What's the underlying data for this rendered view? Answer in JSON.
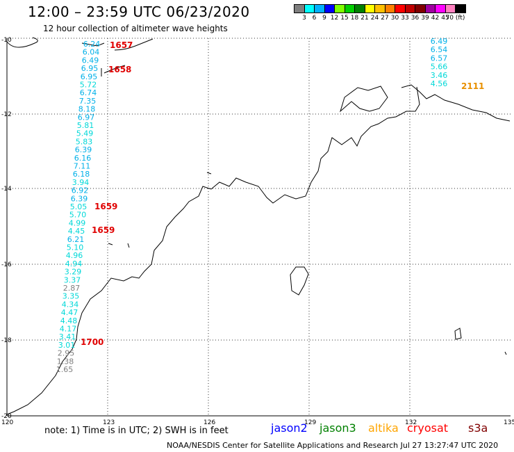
{
  "header": {
    "title": "12:00 – 23:59 UTC 06/23/2020",
    "subtitle": "12 hour collection of altimeter wave heights"
  },
  "scale": {
    "labels": [
      "3",
      "6",
      "9",
      "12",
      "15",
      "18",
      "21",
      "24",
      "27",
      "30",
      "33",
      "36",
      "39",
      "42",
      "45",
      "70 (ft)"
    ],
    "colors": [
      "#7f7f7f",
      "#00ffff",
      "#00b0ff",
      "#0000ff",
      "#7fff00",
      "#00d000",
      "#008000",
      "#ffff00",
      "#ffc000",
      "#ff8000",
      "#ff0000",
      "#c00000",
      "#800000",
      "#a000a0",
      "#ff00ff",
      "#ff80c0",
      "#000000"
    ]
  },
  "axes": {
    "x_ticks": [
      "120",
      "123",
      "126",
      "129",
      "132",
      "135"
    ],
    "y_ticks": [
      "-10",
      "-12",
      "-14",
      "-16",
      "-18",
      "-20"
    ]
  },
  "track_west": {
    "heights": [
      "6.24",
      "6.04",
      "6.49",
      "6.95",
      "6.95",
      "5.72",
      "6.74",
      "7.35",
      "8.18",
      "6.97",
      "5.81",
      "5.49",
      "5.83",
      "6.39",
      "6.16",
      "7.11",
      "6.18",
      "3.94",
      "6.92",
      "6.39",
      "5.05",
      "5.70",
      "4.99",
      "4.45",
      "6.21",
      "5.10",
      "4.96",
      "4.94",
      "3.29",
      "3.37",
      "2.87",
      "3.35",
      "4.34",
      "4.47",
      "4.48",
      "4.17",
      "3.41",
      "3.01",
      "2.95",
      "1.38",
      "1.65"
    ]
  },
  "track_east": {
    "heights": [
      "6.49",
      "6.54",
      "6.57",
      "5.66",
      "3.46",
      "4.56"
    ]
  },
  "times": {
    "west": [
      "1657",
      "1658",
      "1659",
      "1659",
      "1700"
    ],
    "east": "2111"
  },
  "footer": {
    "note": "note:  1) Time is in UTC;  2) SWH is in feet",
    "legend": [
      {
        "label": "jason2",
        "color": "#0000ff"
      },
      {
        "label": "jason3",
        "color": "#008000"
      },
      {
        "label": "altika",
        "color": "#ffa500"
      },
      {
        "label": "cryosat",
        "color": "#ff0000"
      },
      {
        "label": "s3a",
        "color": "#800000"
      }
    ],
    "credit": "NOAA/NESDIS Center for Satellite Applications and Research     Jul 27 13:27:47 UTC 2020"
  }
}
